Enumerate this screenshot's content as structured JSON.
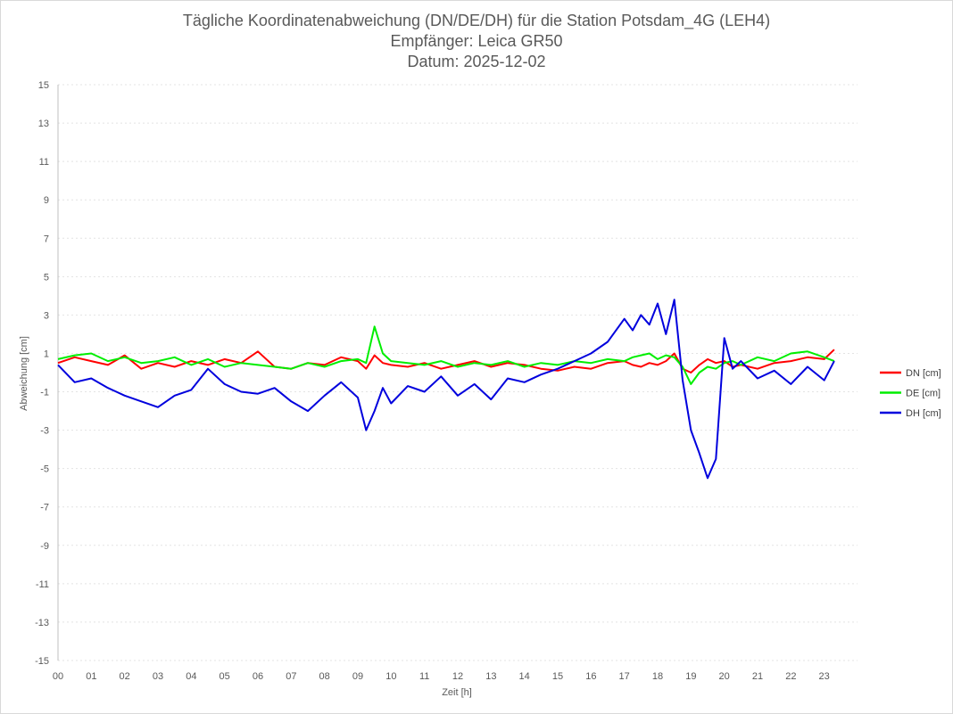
{
  "chart_data": {
    "type": "line",
    "title": "Tägliche Koordinatenabweichung (DN/DE/DH) für die Station Potsdam_4G (LEH4)",
    "subtitle": "Empfänger: Leica GR50",
    "date_label": "Datum: 2025-12-02",
    "xlabel": "Zeit [h]",
    "ylabel": "Abweichung [cm]",
    "xlim": [
      0,
      24
    ],
    "ylim": [
      -15,
      15
    ],
    "x_ticks": [
      0,
      1,
      2,
      3,
      4,
      5,
      6,
      7,
      8,
      9,
      10,
      11,
      12,
      13,
      14,
      15,
      16,
      17,
      18,
      19,
      20,
      21,
      22,
      23
    ],
    "x_tick_labels": [
      "00",
      "01",
      "02",
      "03",
      "04",
      "05",
      "06",
      "07",
      "08",
      "09",
      "10",
      "11",
      "12",
      "13",
      "14",
      "15",
      "16",
      "17",
      "18",
      "19",
      "20",
      "21",
      "22",
      "23"
    ],
    "y_ticks": [
      15,
      13,
      11,
      9,
      7,
      5,
      3,
      1,
      -1,
      -3,
      -5,
      -7,
      -9,
      -11,
      -13,
      -15
    ],
    "y_tick_labels": [
      "15",
      "13",
      "11",
      "9",
      "7",
      "5",
      "3",
      "1",
      "-1",
      "-3",
      "-5",
      "-7",
      "-9",
      "-11",
      "-13",
      "-15"
    ],
    "grid": true,
    "legend_position": "right",
    "x": [
      0,
      0.5,
      1,
      1.5,
      2,
      2.5,
      3,
      3.5,
      4,
      4.5,
      5,
      5.5,
      6,
      6.5,
      7,
      7.5,
      8,
      8.5,
      9,
      9.25,
      9.5,
      9.75,
      10,
      10.5,
      11,
      11.5,
      12,
      12.5,
      13,
      13.5,
      14,
      14.5,
      15,
      15.5,
      16,
      16.5,
      17,
      17.25,
      17.5,
      17.75,
      18,
      18.25,
      18.5,
      18.75,
      19,
      19.25,
      19.5,
      19.75,
      20,
      20.25,
      20.5,
      21,
      21.5,
      22,
      22.5,
      23,
      23.3
    ],
    "series": [
      {
        "name": "DN [cm]",
        "color": "#ff0000",
        "values": [
          0.5,
          0.8,
          0.6,
          0.4,
          0.9,
          0.2,
          0.5,
          0.3,
          0.6,
          0.4,
          0.7,
          0.5,
          1.1,
          0.3,
          0.2,
          0.5,
          0.4,
          0.8,
          0.6,
          0.2,
          0.9,
          0.5,
          0.4,
          0.3,
          0.5,
          0.2,
          0.4,
          0.6,
          0.3,
          0.5,
          0.4,
          0.2,
          0.1,
          0.3,
          0.2,
          0.5,
          0.6,
          0.4,
          0.3,
          0.5,
          0.4,
          0.6,
          1.0,
          0.2,
          0.0,
          0.4,
          0.7,
          0.5,
          0.6,
          0.3,
          0.4,
          0.2,
          0.5,
          0.6,
          0.8,
          0.7,
          1.2
        ]
      },
      {
        "name": "DE [cm]",
        "color": "#00ee00",
        "values": [
          0.7,
          0.9,
          1.0,
          0.6,
          0.8,
          0.5,
          0.6,
          0.8,
          0.4,
          0.7,
          0.3,
          0.5,
          0.4,
          0.3,
          0.2,
          0.5,
          0.3,
          0.6,
          0.7,
          0.5,
          2.4,
          1.0,
          0.6,
          0.5,
          0.4,
          0.6,
          0.3,
          0.5,
          0.4,
          0.6,
          0.3,
          0.5,
          0.4,
          0.6,
          0.5,
          0.7,
          0.6,
          0.8,
          0.9,
          1.0,
          0.7,
          0.9,
          0.8,
          0.3,
          -0.6,
          0.0,
          0.3,
          0.2,
          0.5,
          0.6,
          0.4,
          0.8,
          0.6,
          1.0,
          1.1,
          0.8,
          0.6
        ]
      },
      {
        "name": "DH [cm]",
        "color": "#0000dd",
        "values": [
          0.4,
          -0.5,
          -0.3,
          -0.8,
          -1.2,
          -1.5,
          -1.8,
          -1.2,
          -0.9,
          0.2,
          -0.6,
          -1.0,
          -1.1,
          -0.8,
          -1.5,
          -2.0,
          -1.2,
          -0.5,
          -1.3,
          -3.0,
          -2.0,
          -0.8,
          -1.6,
          -0.7,
          -1.0,
          -0.2,
          -1.2,
          -0.6,
          -1.4,
          -0.3,
          -0.5,
          -0.1,
          0.2,
          0.6,
          1.0,
          1.6,
          2.8,
          2.2,
          3.0,
          2.5,
          3.6,
          2.0,
          3.8,
          -0.4,
          -3.0,
          -4.2,
          -5.5,
          -4.5,
          1.8,
          0.2,
          0.6,
          -0.3,
          0.1,
          -0.6,
          0.3,
          -0.4,
          0.6
        ]
      }
    ]
  }
}
